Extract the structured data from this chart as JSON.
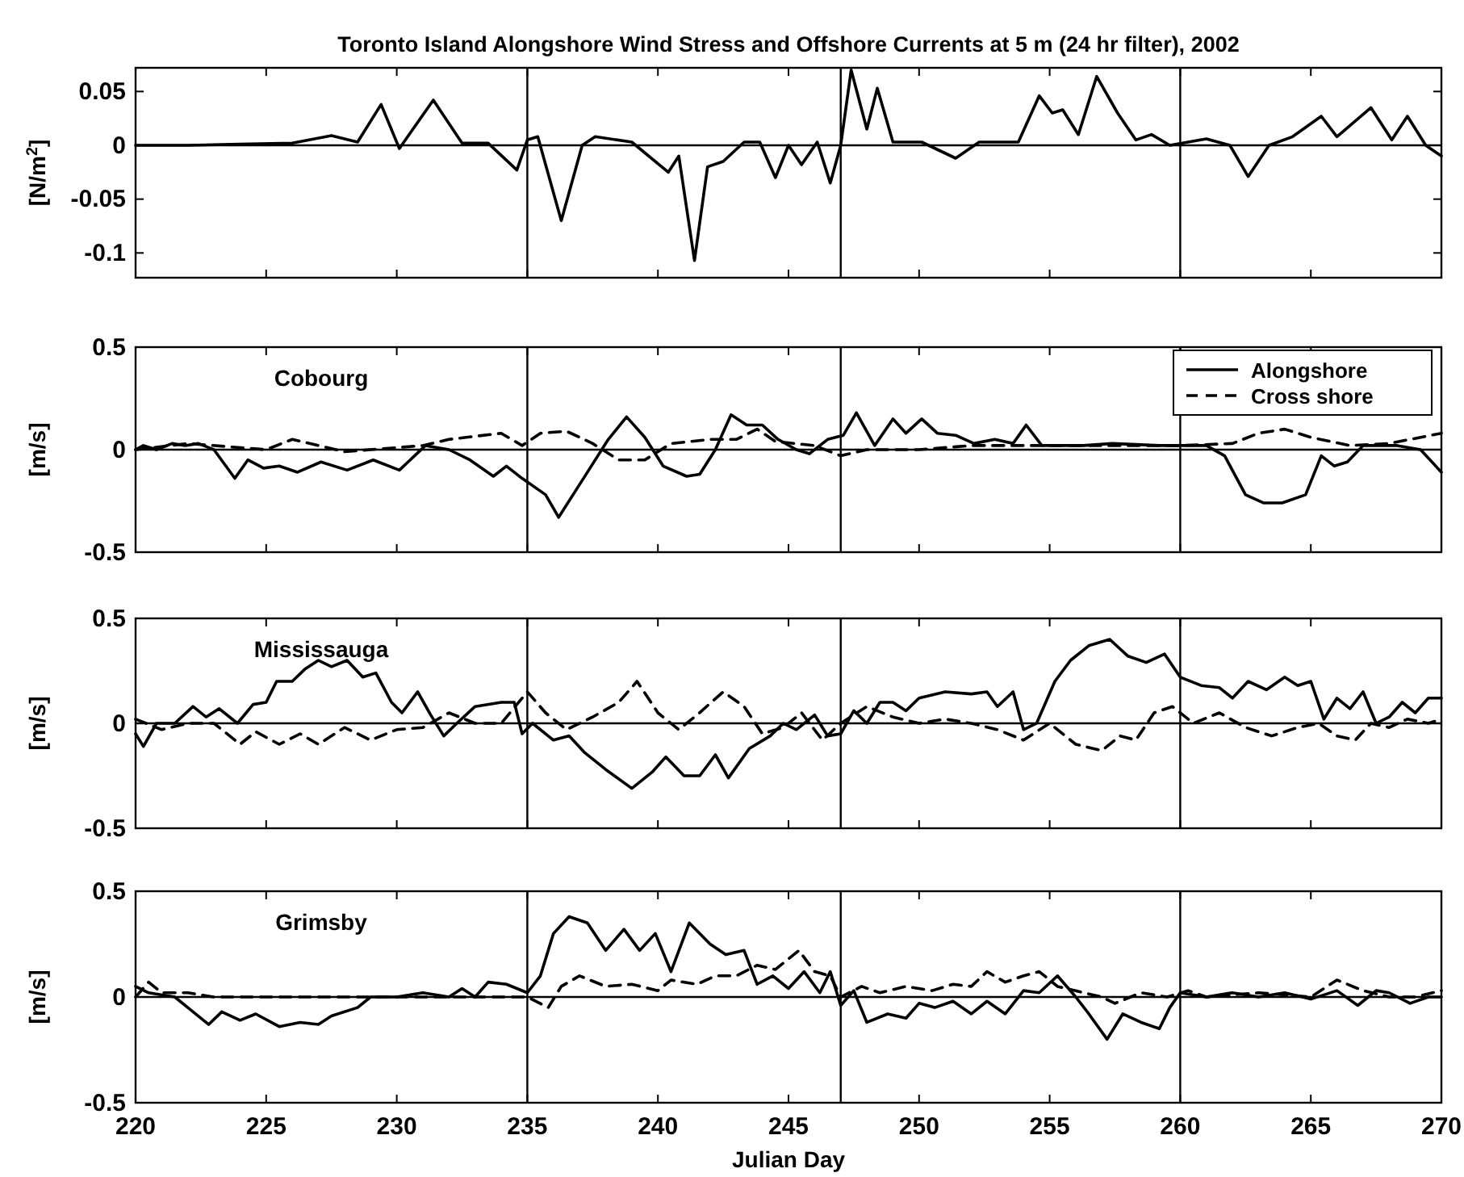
{
  "chart_data": [
    {
      "type": "line",
      "title": "Toronto Island Alongshore Wind Stress and Offshore Currents at 5 m (24 hr filter), 2002",
      "ylabel": "[N/m$^{2}$]",
      "xlim": [
        220,
        270
      ],
      "xticks": [
        220,
        225,
        230,
        235,
        240,
        245,
        250,
        255,
        260,
        265,
        270
      ],
      "ylim": [
        -0.123,
        0.072
      ],
      "yticks": [
        0.05,
        0,
        -0.05,
        -0.1
      ],
      "tick_labels": "y",
      "grid": false,
      "legend": false,
      "ref_lines": [
        {
          "axis": "x",
          "value": 235
        },
        {
          "axis": "x",
          "value": 247
        },
        {
          "axis": "x",
          "value": 260
        },
        {
          "axis": "y",
          "value": 0
        }
      ],
      "series": [
        {
          "color": "#000000",
          "line_style": "solid",
          "x": [
            220,
            222,
            224,
            226,
            227.5,
            228.5,
            229.4,
            230.1,
            231.4,
            232.5,
            233.5,
            234.6,
            235,
            235.4,
            236.3,
            237.1,
            237.6,
            239,
            240.4,
            240.8,
            241.4,
            241.9,
            242.5,
            243.3,
            243.9,
            244.5,
            245,
            245.5,
            246.1,
            246.6,
            247,
            247.4,
            248,
            248.4,
            249,
            250.1,
            251.4,
            252.3,
            253.8,
            254.6,
            255.1,
            255.5,
            256.1,
            256.8,
            257.6,
            258.3,
            258.9,
            259.6,
            261,
            261.9,
            262.6,
            263.4,
            264.3,
            265.4,
            266,
            267.3,
            268.1,
            268.7,
            269.4,
            270
          ],
          "values": [
            0,
            0,
            0.001,
            0.002,
            0.009,
            0.003,
            0.038,
            -0.003,
            0.042,
            0.002,
            0.002,
            -0.023,
            0.005,
            0.008,
            -0.07,
            0,
            0.008,
            0.003,
            -0.025,
            -0.01,
            -0.107,
            -0.02,
            -0.015,
            0.003,
            0.003,
            -0.03,
            0,
            -0.018,
            0.003,
            -0.035,
            0,
            0.07,
            0.015,
            0.053,
            0.003,
            0.003,
            -0.012,
            0.003,
            0.003,
            0.046,
            0.03,
            0.033,
            0.01,
            0.064,
            0.03,
            0.005,
            0.01,
            0,
            0.006,
            0,
            -0.029,
            0,
            0.008,
            0.027,
            0.008,
            0.035,
            0.005,
            0.027,
            0,
            -0.01
          ]
        }
      ]
    },
    {
      "type": "line",
      "ylabel": "[m/s]",
      "xlim": [
        220,
        270
      ],
      "xticks": [
        220,
        225,
        230,
        235,
        240,
        245,
        250,
        255,
        260,
        265,
        270
      ],
      "ylim": [
        -0.5,
        0.5
      ],
      "yticks": [
        -0.5,
        0,
        0.5
      ],
      "tick_labels": "y",
      "grid": false,
      "legend": "top right",
      "annotations": [
        "Cobourg"
      ],
      "ref_lines": [
        {
          "axis": "x",
          "value": 235
        },
        {
          "axis": "x",
          "value": 247
        },
        {
          "axis": "x",
          "value": 260
        },
        {
          "axis": "y",
          "value": 0
        }
      ],
      "series": [
        {
          "name": "Alongshore",
          "color": "#000000",
          "line_style": "solid",
          "x": [
            220,
            220.3,
            220.8,
            221.4,
            221.9,
            222.4,
            223,
            223.8,
            224.3,
            224.9,
            225.5,
            226.2,
            227.1,
            228.1,
            229.1,
            230.1,
            231.1,
            232,
            232.8,
            233.7,
            234.2,
            234.8,
            235.7,
            236.2,
            237.1,
            238.1,
            238.8,
            239.5,
            240.2,
            241.1,
            241.6,
            242.2,
            242.8,
            243.4,
            244,
            244.6,
            245.3,
            245.8,
            246.5,
            247.1,
            247.6,
            248.3,
            249,
            249.5,
            250.1,
            250.7,
            251.4,
            252.1,
            252.9,
            253.6,
            254.1,
            254.7,
            256.3,
            257.4,
            259.2,
            261,
            261.7,
            262.5,
            263.2,
            263.9,
            264.8,
            265.4,
            265.9,
            266.4,
            267,
            268.3,
            269.2,
            270
          ],
          "values": [
            0,
            0.02,
            0,
            0.03,
            0.02,
            0.03,
            0,
            -0.14,
            -0.05,
            -0.09,
            -0.08,
            -0.11,
            -0.06,
            -0.1,
            -0.05,
            -0.1,
            0.02,
            0,
            -0.05,
            -0.13,
            -0.08,
            -0.14,
            -0.22,
            -0.33,
            -0.15,
            0.05,
            0.16,
            0.06,
            -0.08,
            -0.13,
            -0.12,
            0,
            0.17,
            0.12,
            0.12,
            0.05,
            0,
            -0.02,
            0.05,
            0.07,
            0.18,
            0.02,
            0.15,
            0.08,
            0.15,
            0.08,
            0.07,
            0.03,
            0.05,
            0.03,
            0.12,
            0.02,
            0.02,
            0.03,
            0.02,
            0.02,
            -0.03,
            -0.22,
            -0.26,
            -0.26,
            -0.22,
            -0.03,
            -0.08,
            -0.06,
            0.02,
            0.02,
            0,
            -0.11
          ]
        },
        {
          "name": "Cross shore",
          "color": "#000000",
          "line_style": "dashed",
          "x": [
            220,
            222,
            225,
            226,
            228,
            231,
            232,
            234,
            234.8,
            235.5,
            236.5,
            237.5,
            238.5,
            239.5,
            240.5,
            242,
            243,
            243.8,
            244.5,
            246,
            247,
            248,
            250,
            252,
            254,
            256,
            258,
            260,
            262,
            263,
            264,
            265,
            266.5,
            268,
            270
          ],
          "values": [
            0,
            0.03,
            0,
            0.05,
            -0.01,
            0.02,
            0.05,
            0.08,
            0.02,
            0.08,
            0.09,
            0.03,
            -0.05,
            -0.05,
            0.03,
            0.05,
            0.05,
            0.1,
            0.04,
            0.02,
            -0.03,
            0,
            0,
            0.02,
            0.02,
            0.02,
            0.02,
            0.02,
            0.03,
            0.08,
            0.1,
            0.06,
            0.02,
            0.03,
            0.08
          ]
        }
      ]
    },
    {
      "type": "line",
      "ylabel": "[m/s]",
      "xlim": [
        220,
        270
      ],
      "xticks": [
        220,
        225,
        230,
        235,
        240,
        245,
        250,
        255,
        260,
        265,
        270
      ],
      "ylim": [
        -0.5,
        0.5
      ],
      "yticks": [
        -0.5,
        0,
        0.5
      ],
      "tick_labels": "y",
      "grid": false,
      "legend": false,
      "annotations": [
        "Mississauga"
      ],
      "ref_lines": [
        {
          "axis": "x",
          "value": 235
        },
        {
          "axis": "x",
          "value": 247
        },
        {
          "axis": "x",
          "value": 260
        },
        {
          "axis": "y",
          "value": 0
        }
      ],
      "series": [
        {
          "color": "#000000",
          "line_style": "solid",
          "x": [
            220,
            220.3,
            220.8,
            221.5,
            222.2,
            222.7,
            223.2,
            223.9,
            224.5,
            225,
            225.4,
            226,
            226.5,
            227,
            227.5,
            228.1,
            228.7,
            229.2,
            229.8,
            230.2,
            230.8,
            231.3,
            231.8,
            232.3,
            233,
            234,
            234.5,
            234.8,
            235.2,
            236,
            236.6,
            237.2,
            238,
            239,
            239.8,
            240.3,
            241,
            241.6,
            242.2,
            242.7,
            243.5,
            244.3,
            244.8,
            245.3,
            246,
            246.5,
            247,
            247.5,
            248,
            248.5,
            249,
            249.5,
            250,
            251,
            252,
            252.6,
            253,
            253.6,
            254,
            254.5,
            255.2,
            255.8,
            256.5,
            257.3,
            258,
            258.7,
            259.4,
            260,
            260.8,
            261.5,
            262,
            262.6,
            263.3,
            264,
            264.5,
            265,
            265.5,
            266,
            266.5,
            267,
            267.5,
            268,
            268.5,
            269,
            269.5,
            270
          ],
          "values": [
            -0.05,
            -0.11,
            0,
            0,
            0.08,
            0.03,
            0.07,
            0,
            0.09,
            0.1,
            0.2,
            0.2,
            0.26,
            0.3,
            0.27,
            0.3,
            0.22,
            0.24,
            0.1,
            0.05,
            0.15,
            0.04,
            -0.06,
            0,
            0.08,
            0.1,
            0.1,
            -0.05,
            0,
            -0.08,
            -0.06,
            -0.14,
            -0.22,
            -0.31,
            -0.23,
            -0.16,
            -0.25,
            -0.25,
            -0.15,
            -0.26,
            -0.12,
            -0.06,
            0,
            -0.03,
            0.04,
            -0.06,
            -0.05,
            0.06,
            0,
            0.1,
            0.1,
            0.06,
            0.12,
            0.15,
            0.14,
            0.15,
            0.08,
            0.15,
            -0.03,
            0,
            0.2,
            0.3,
            0.37,
            0.4,
            0.32,
            0.29,
            0.33,
            0.22,
            0.18,
            0.17,
            0.12,
            0.2,
            0.16,
            0.22,
            0.18,
            0.2,
            0.02,
            0.12,
            0.07,
            0.15,
            0,
            0.03,
            0.1,
            0.05,
            0.12,
            0.12
          ]
        },
        {
          "color": "#000000",
          "line_style": "dashed",
          "x": [
            220,
            221,
            222,
            223,
            224,
            224.6,
            225.5,
            226.3,
            227,
            228,
            229,
            230,
            231,
            232,
            233,
            234,
            235,
            235.7,
            236.5,
            237.5,
            238.5,
            239.2,
            240,
            240.8,
            241.5,
            242.5,
            243.3,
            244,
            244.8,
            245.5,
            246.3,
            247,
            248,
            249,
            250,
            251,
            252,
            253,
            254,
            255,
            256,
            257,
            257.7,
            258.3,
            259,
            259.7,
            260.5,
            261.5,
            262.5,
            263.5,
            264.5,
            265.3,
            266,
            266.7,
            267.3,
            268,
            268.7,
            269.5,
            270
          ],
          "values": [
            0.02,
            -0.03,
            0,
            0,
            -0.1,
            -0.04,
            -0.1,
            -0.05,
            -0.1,
            -0.02,
            -0.08,
            -0.03,
            -0.02,
            0.05,
            0,
            0,
            0.15,
            0.05,
            -0.03,
            0.03,
            0.1,
            0.2,
            0.05,
            -0.03,
            0.04,
            0.15,
            0.08,
            -0.05,
            -0.02,
            0.05,
            -0.08,
            0,
            0.08,
            0.03,
            0,
            0.02,
            0,
            -0.03,
            -0.08,
            0,
            -0.1,
            -0.13,
            -0.06,
            -0.08,
            0.05,
            0.08,
            0,
            0.05,
            -0.02,
            -0.06,
            -0.02,
            0,
            -0.06,
            -0.08,
            0,
            -0.02,
            0.02,
            0,
            0.02
          ]
        }
      ]
    },
    {
      "type": "line",
      "xlabel": "Julian Day",
      "ylabel": "[m/s]",
      "xlim": [
        220,
        270
      ],
      "xticks": [
        220,
        225,
        230,
        235,
        240,
        245,
        250,
        255,
        260,
        265,
        270
      ],
      "ylim": [
        -0.5,
        0.5
      ],
      "yticks": [
        -0.5,
        0,
        0.5
      ],
      "grid": false,
      "legend": false,
      "annotations": [
        "Grimsby"
      ],
      "ref_lines": [
        {
          "axis": "x",
          "value": 235
        },
        {
          "axis": "x",
          "value": 247
        },
        {
          "axis": "x",
          "value": 260
        },
        {
          "axis": "y",
          "value": 0
        }
      ],
      "series": [
        {
          "color": "#000000",
          "line_style": "solid",
          "x": [
            220,
            220.5,
            221.5,
            222,
            222.8,
            223.3,
            224,
            224.6,
            225.5,
            226.3,
            227,
            227.5,
            228.5,
            229,
            230,
            231,
            232,
            232.5,
            233,
            233.5,
            234.2,
            235,
            235.5,
            236,
            236.6,
            237.3,
            238,
            238.7,
            239.3,
            239.9,
            240.5,
            241.2,
            242,
            242.6,
            243.3,
            243.8,
            244.4,
            245,
            245.6,
            246.2,
            246.6,
            247,
            247.5,
            248,
            248.8,
            249.5,
            250,
            250.6,
            251.3,
            252,
            252.6,
            253.3,
            254,
            254.6,
            255.3,
            256,
            256.5,
            257.2,
            257.8,
            258.5,
            259.2,
            259.6,
            260,
            261,
            262,
            263,
            264,
            265,
            266,
            266.8,
            267.5,
            268,
            268.8,
            269.5,
            270
          ],
          "values": [
            0.05,
            0.02,
            0,
            -0.05,
            -0.13,
            -0.07,
            -0.11,
            -0.08,
            -0.14,
            -0.12,
            -0.13,
            -0.09,
            -0.05,
            0,
            0,
            0.02,
            0,
            0.04,
            0,
            0.07,
            0.06,
            0.02,
            0.1,
            0.3,
            0.38,
            0.35,
            0.22,
            0.32,
            0.22,
            0.3,
            0.12,
            0.35,
            0.25,
            0.2,
            0.22,
            0.06,
            0.1,
            0.04,
            0.12,
            0.02,
            0.12,
            -0.04,
            0.03,
            -0.12,
            -0.08,
            -0.1,
            -0.03,
            -0.05,
            -0.02,
            -0.08,
            -0.02,
            -0.08,
            0.03,
            0.02,
            0.1,
            0,
            -0.08,
            -0.2,
            -0.08,
            -0.12,
            -0.15,
            -0.05,
            0.02,
            0,
            0.02,
            0,
            0.02,
            -0.01,
            0.03,
            -0.04,
            0.03,
            0.02,
            -0.03,
            0,
            0
          ]
        },
        {
          "color": "#000000",
          "line_style": "dashed",
          "x": [
            220,
            220.5,
            221,
            222,
            223,
            225,
            228,
            230,
            232,
            234,
            235,
            235.8,
            236.3,
            237,
            238,
            239,
            240,
            240.5,
            241.5,
            242.2,
            243,
            243.8,
            244.5,
            245.4,
            246,
            246.6,
            247,
            247.8,
            248.5,
            249.5,
            250.5,
            251.3,
            252,
            252.6,
            253.3,
            254,
            254.6,
            255.3,
            256.3,
            257,
            257.5,
            258.5,
            259.5,
            260.3,
            261,
            263,
            265,
            266,
            267,
            268,
            269,
            270
          ],
          "values": [
            0,
            0.07,
            0.02,
            0.02,
            0,
            0,
            0,
            0,
            0,
            0,
            0,
            -0.05,
            0.05,
            0.1,
            0.05,
            0.06,
            0.03,
            0.08,
            0.06,
            0.1,
            0.1,
            0.15,
            0.13,
            0.22,
            0.12,
            0.1,
            0,
            0.05,
            0.02,
            0.05,
            0.03,
            0.06,
            0.05,
            0.12,
            0.07,
            0.1,
            0.12,
            0.05,
            0.02,
            0,
            -0.03,
            0.02,
            0,
            0.03,
            0,
            0.02,
            0,
            0.08,
            0.03,
            0,
            0,
            0.03
          ]
        }
      ]
    }
  ]
}
